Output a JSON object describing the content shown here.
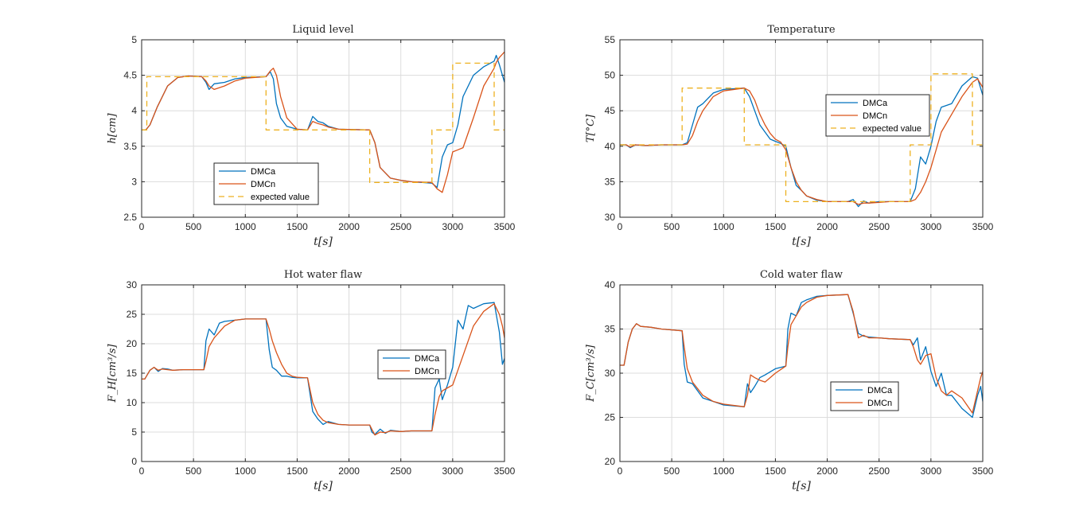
{
  "chart_data": [
    {
      "type": "line",
      "title": "Liquid level",
      "xlabel": "t[s]",
      "ylabel": "h[cm]",
      "xlim": [
        0,
        3500
      ],
      "ylim": [
        2.5,
        5
      ],
      "xticks": [
        "0",
        "500",
        "1000",
        "1500",
        "2000",
        "2500",
        "3000",
        "3500"
      ],
      "yticks": [
        "2.5",
        "3",
        "3.5",
        "4",
        "4.5",
        "5"
      ],
      "grid": true,
      "legend_position": "bottom-left",
      "series": [
        {
          "name": "DMCa",
          "color": "#0072BD",
          "dash": false,
          "x": [
            0,
            40,
            80,
            150,
            250,
            350,
            450,
            580,
            620,
            650,
            700,
            800,
            900,
            1000,
            1200,
            1240,
            1270,
            1300,
            1340,
            1400,
            1500,
            1600,
            1650,
            1700,
            1750,
            1800,
            1900,
            2200,
            2250,
            2300,
            2400,
            2500,
            2600,
            2800,
            2850,
            2900,
            2950,
            3000,
            3050,
            3100,
            3200,
            3300,
            3400,
            3420,
            3450,
            3500
          ],
          "y": [
            3.73,
            3.73,
            3.8,
            4.05,
            4.35,
            4.47,
            4.49,
            4.48,
            4.4,
            4.3,
            4.38,
            4.4,
            4.45,
            4.47,
            4.48,
            4.55,
            4.45,
            4.1,
            3.9,
            3.78,
            3.74,
            3.73,
            3.92,
            3.85,
            3.83,
            3.78,
            3.74,
            3.73,
            3.55,
            3.2,
            3.05,
            3.02,
            3.0,
            2.98,
            2.92,
            3.35,
            3.52,
            3.55,
            3.8,
            4.2,
            4.5,
            4.62,
            4.7,
            4.78,
            4.65,
            4.4
          ]
        },
        {
          "name": "DMCn",
          "color": "#D95319",
          "dash": false,
          "x": [
            0,
            40,
            80,
            150,
            250,
            350,
            450,
            580,
            620,
            650,
            700,
            800,
            900,
            1000,
            1200,
            1240,
            1270,
            1300,
            1340,
            1400,
            1500,
            1600,
            1650,
            1700,
            1750,
            1800,
            1900,
            2200,
            2250,
            2300,
            2400,
            2500,
            2600,
            2800,
            2850,
            2900,
            2950,
            3000,
            3050,
            3100,
            3200,
            3300,
            3400,
            3420,
            3450,
            3500
          ],
          "y": [
            3.73,
            3.73,
            3.8,
            4.05,
            4.35,
            4.47,
            4.49,
            4.48,
            4.42,
            4.35,
            4.3,
            4.35,
            4.42,
            4.46,
            4.48,
            4.56,
            4.6,
            4.5,
            4.2,
            3.9,
            3.74,
            3.73,
            3.85,
            3.82,
            3.8,
            3.77,
            3.74,
            3.73,
            3.55,
            3.2,
            3.05,
            3.02,
            3.0,
            2.99,
            2.9,
            2.85,
            3.1,
            3.42,
            3.45,
            3.48,
            3.9,
            4.35,
            4.6,
            4.68,
            4.75,
            4.83
          ]
        },
        {
          "name": "expected value",
          "color": "#EDB120",
          "dash": true,
          "x": [
            0,
            50,
            50,
            1200,
            1200,
            2200,
            2200,
            2800,
            2800,
            3000,
            3000,
            3400,
            3400,
            3500
          ],
          "y": [
            3.73,
            3.73,
            4.48,
            4.48,
            3.73,
            3.73,
            2.99,
            2.99,
            3.73,
            3.73,
            4.67,
            4.67,
            3.73,
            3.73
          ]
        }
      ]
    },
    {
      "type": "line",
      "title": "Temperature",
      "xlabel": "t[s]",
      "ylabel": "T[°C]",
      "xlim": [
        0,
        3500
      ],
      "ylim": [
        30,
        55
      ],
      "xticks": [
        "0",
        "500",
        "1000",
        "1500",
        "2000",
        "2500",
        "3000",
        "3500"
      ],
      "yticks": [
        "30",
        "35",
        "40",
        "45",
        "50",
        "55"
      ],
      "grid": true,
      "legend_position": "top-right",
      "series": [
        {
          "name": "DMCa",
          "color": "#0072BD",
          "dash": false,
          "x": [
            0,
            60,
            100,
            150,
            250,
            400,
            600,
            650,
            700,
            750,
            800,
            900,
            1000,
            1200,
            1250,
            1300,
            1350,
            1400,
            1450,
            1500,
            1550,
            1600,
            1650,
            1700,
            1750,
            1800,
            1900,
            2000,
            2200,
            2250,
            2300,
            2350,
            2400,
            2500,
            2600,
            2800,
            2850,
            2900,
            2950,
            3000,
            3050,
            3100,
            3200,
            3300,
            3400,
            3450,
            3500
          ],
          "y": [
            40.2,
            40.2,
            39.8,
            40.2,
            40.1,
            40.2,
            40.2,
            40.5,
            43.0,
            45.5,
            46.0,
            47.5,
            48.0,
            48.2,
            47.0,
            45.0,
            43.0,
            42.0,
            41.0,
            40.7,
            40.4,
            40.0,
            37.0,
            34.5,
            33.8,
            33.0,
            32.4,
            32.2,
            32.2,
            32.5,
            31.5,
            32.3,
            32.0,
            32.2,
            32.2,
            32.2,
            34.0,
            38.5,
            37.5,
            40.0,
            43.5,
            45.5,
            46.0,
            48.5,
            49.8,
            49.6,
            47.2
          ]
        },
        {
          "name": "DMCn",
          "color": "#D95319",
          "dash": false,
          "x": [
            0,
            60,
            100,
            150,
            250,
            400,
            600,
            650,
            700,
            750,
            800,
            900,
            1000,
            1200,
            1250,
            1300,
            1350,
            1400,
            1450,
            1500,
            1550,
            1600,
            1650,
            1700,
            1750,
            1800,
            1900,
            2000,
            2200,
            2250,
            2300,
            2350,
            2400,
            2500,
            2600,
            2800,
            2850,
            2900,
            2950,
            3000,
            3050,
            3100,
            3200,
            3300,
            3400,
            3450,
            3500
          ],
          "y": [
            40.2,
            40.2,
            39.9,
            40.2,
            40.1,
            40.2,
            40.2,
            40.3,
            41.5,
            43.5,
            45.0,
            47.0,
            47.8,
            48.2,
            47.8,
            46.5,
            44.5,
            43.0,
            41.8,
            41.0,
            40.6,
            39.5,
            37.0,
            35.0,
            33.8,
            33.0,
            32.5,
            32.2,
            32.2,
            32.2,
            31.8,
            32.0,
            32.0,
            32.1,
            32.2,
            32.2,
            32.5,
            33.5,
            35.0,
            37.0,
            39.5,
            42.0,
            44.5,
            47.0,
            49.0,
            49.5,
            48.3
          ]
        },
        {
          "name": "expected value",
          "color": "#EDB120",
          "dash": true,
          "x": [
            0,
            600,
            600,
            1200,
            1200,
            1600,
            1600,
            2800,
            2800,
            3000,
            3000,
            3400,
            3400,
            3500
          ],
          "y": [
            40.2,
            40.2,
            48.2,
            48.2,
            40.2,
            40.2,
            32.2,
            32.2,
            40.2,
            40.2,
            50.2,
            50.2,
            40.2,
            40.2
          ]
        }
      ]
    },
    {
      "type": "line",
      "title": "Hot water flaw",
      "xlabel": "t[s]",
      "ylabel": "F_H[cm³/s]",
      "xlim": [
        0,
        3500
      ],
      "ylim": [
        0,
        30
      ],
      "xticks": [
        "0",
        "500",
        "1000",
        "1500",
        "2000",
        "2500",
        "3000",
        "3500"
      ],
      "yticks": [
        "0",
        "5",
        "10",
        "15",
        "20",
        "25",
        "30"
      ],
      "grid": true,
      "legend_position": "right",
      "series": [
        {
          "name": "DMCa",
          "color": "#0072BD",
          "dash": false,
          "x": [
            0,
            30,
            80,
            120,
            160,
            200,
            250,
            300,
            400,
            600,
            620,
            650,
            700,
            750,
            800,
            900,
            1000,
            1200,
            1230,
            1260,
            1300,
            1350,
            1400,
            1450,
            1500,
            1600,
            1650,
            1700,
            1750,
            1800,
            1900,
            2000,
            2200,
            2220,
            2250,
            2300,
            2350,
            2400,
            2500,
            2600,
            2800,
            2830,
            2870,
            2900,
            2950,
            3000,
            3050,
            3100,
            3150,
            3200,
            3300,
            3400,
            3450,
            3480,
            3500
          ],
          "y": [
            14,
            14,
            15.5,
            16,
            15.3,
            15.8,
            15.7,
            15.5,
            15.6,
            15.6,
            20.5,
            22.5,
            21.5,
            23.5,
            23.8,
            24,
            24.2,
            24.2,
            19,
            16,
            15.5,
            14.5,
            14.5,
            14.3,
            14.2,
            14.2,
            8.5,
            7.2,
            6.3,
            6.8,
            6.3,
            6.2,
            6.2,
            5.0,
            4.6,
            5.5,
            4.8,
            5.3,
            5.1,
            5.2,
            5.2,
            12.5,
            14.0,
            10.5,
            13.0,
            16.0,
            24.0,
            22.5,
            26.5,
            26.0,
            26.8,
            27.0,
            22.0,
            16.5,
            17.5
          ]
        },
        {
          "name": "DMCn",
          "color": "#D95319",
          "dash": false,
          "x": [
            0,
            30,
            80,
            120,
            160,
            200,
            250,
            300,
            400,
            600,
            620,
            650,
            700,
            750,
            800,
            900,
            1000,
            1200,
            1230,
            1260,
            1300,
            1350,
            1400,
            1450,
            1500,
            1600,
            1650,
            1700,
            1750,
            1800,
            1900,
            2000,
            2200,
            2220,
            2250,
            2300,
            2350,
            2400,
            2500,
            2600,
            2800,
            2830,
            2870,
            2900,
            2950,
            3000,
            3050,
            3100,
            3150,
            3200,
            3300,
            3400,
            3450,
            3480,
            3500
          ],
          "y": [
            14,
            14,
            15.5,
            16,
            15.5,
            15.7,
            15.6,
            15.5,
            15.6,
            15.6,
            17.0,
            19.5,
            21.0,
            22.0,
            23.0,
            24.0,
            24.2,
            24.2,
            22.5,
            20.5,
            18.5,
            16.5,
            15.0,
            14.5,
            14.3,
            14.2,
            10.0,
            8.0,
            7.0,
            6.6,
            6.3,
            6.2,
            6.2,
            5.5,
            4.5,
            5.0,
            4.9,
            5.2,
            5.1,
            5.2,
            5.2,
            8.0,
            11.0,
            12.0,
            12.5,
            13.0,
            15.5,
            18.0,
            20.5,
            23.0,
            25.5,
            26.8,
            25.0,
            23.0,
            21.0
          ]
        }
      ]
    },
    {
      "type": "line",
      "title": "Cold water flaw",
      "xlabel": "t[s]",
      "ylabel": "F_C[cm³/s]",
      "xlim": [
        0,
        3500
      ],
      "ylim": [
        20,
        40
      ],
      "xticks": [
        "0",
        "500",
        "1000",
        "1500",
        "2000",
        "2500",
        "3000",
        "3500"
      ],
      "yticks": [
        "20",
        "25",
        "30",
        "35",
        "40"
      ],
      "grid": true,
      "legend_position": "bottom-center",
      "series": [
        {
          "name": "DMCa",
          "color": "#0072BD",
          "dash": false,
          "x": [
            0,
            40,
            80,
            120,
            160,
            200,
            300,
            400,
            600,
            620,
            650,
            700,
            800,
            900,
            1000,
            1200,
            1230,
            1260,
            1300,
            1350,
            1400,
            1500,
            1600,
            1620,
            1650,
            1700,
            1750,
            1800,
            1900,
            2000,
            2200,
            2250,
            2300,
            2350,
            2400,
            2500,
            2600,
            2800,
            2830,
            2870,
            2900,
            2950,
            3000,
            3050,
            3100,
            3150,
            3200,
            3300,
            3400,
            3450,
            3480,
            3500
          ],
          "y": [
            30.9,
            30.9,
            33.5,
            35.0,
            35.6,
            35.3,
            35.2,
            35.0,
            34.8,
            31.0,
            29.0,
            28.8,
            27.2,
            26.8,
            26.4,
            26.2,
            28.8,
            27.8,
            28.5,
            29.5,
            29.8,
            30.5,
            30.8,
            35.0,
            36.8,
            36.5,
            38.0,
            38.3,
            38.7,
            38.8,
            38.9,
            36.8,
            34.5,
            34.2,
            34.1,
            34.0,
            33.9,
            33.8,
            33.2,
            34.0,
            31.5,
            33.0,
            30.2,
            28.5,
            30.0,
            27.5,
            27.5,
            26.0,
            25.0,
            27.5,
            28.5,
            26.8
          ]
        },
        {
          "name": "DMCn",
          "color": "#D95319",
          "dash": false,
          "x": [
            0,
            40,
            80,
            120,
            160,
            200,
            300,
            400,
            600,
            620,
            650,
            700,
            800,
            900,
            1000,
            1200,
            1230,
            1260,
            1300,
            1350,
            1400,
            1500,
            1600,
            1620,
            1650,
            1700,
            1750,
            1800,
            1900,
            2000,
            2200,
            2250,
            2300,
            2350,
            2400,
            2500,
            2600,
            2800,
            2830,
            2870,
            2900,
            2950,
            3000,
            3050,
            3100,
            3150,
            3200,
            3300,
            3400,
            3450,
            3480,
            3500
          ],
          "y": [
            30.9,
            30.9,
            33.5,
            35.0,
            35.6,
            35.3,
            35.2,
            35.0,
            34.8,
            33.0,
            30.5,
            29.0,
            27.5,
            26.8,
            26.5,
            26.2,
            27.5,
            29.8,
            29.5,
            29.2,
            29.0,
            30.0,
            30.8,
            33.0,
            35.5,
            36.5,
            37.5,
            38.0,
            38.6,
            38.8,
            38.9,
            37.0,
            34.0,
            34.3,
            34.0,
            34.0,
            33.9,
            33.8,
            33.0,
            31.5,
            31.0,
            32.0,
            32.2,
            29.5,
            28.0,
            27.5,
            28.0,
            27.2,
            25.5,
            28.0,
            29.5,
            30.2
          ]
        }
      ]
    }
  ]
}
